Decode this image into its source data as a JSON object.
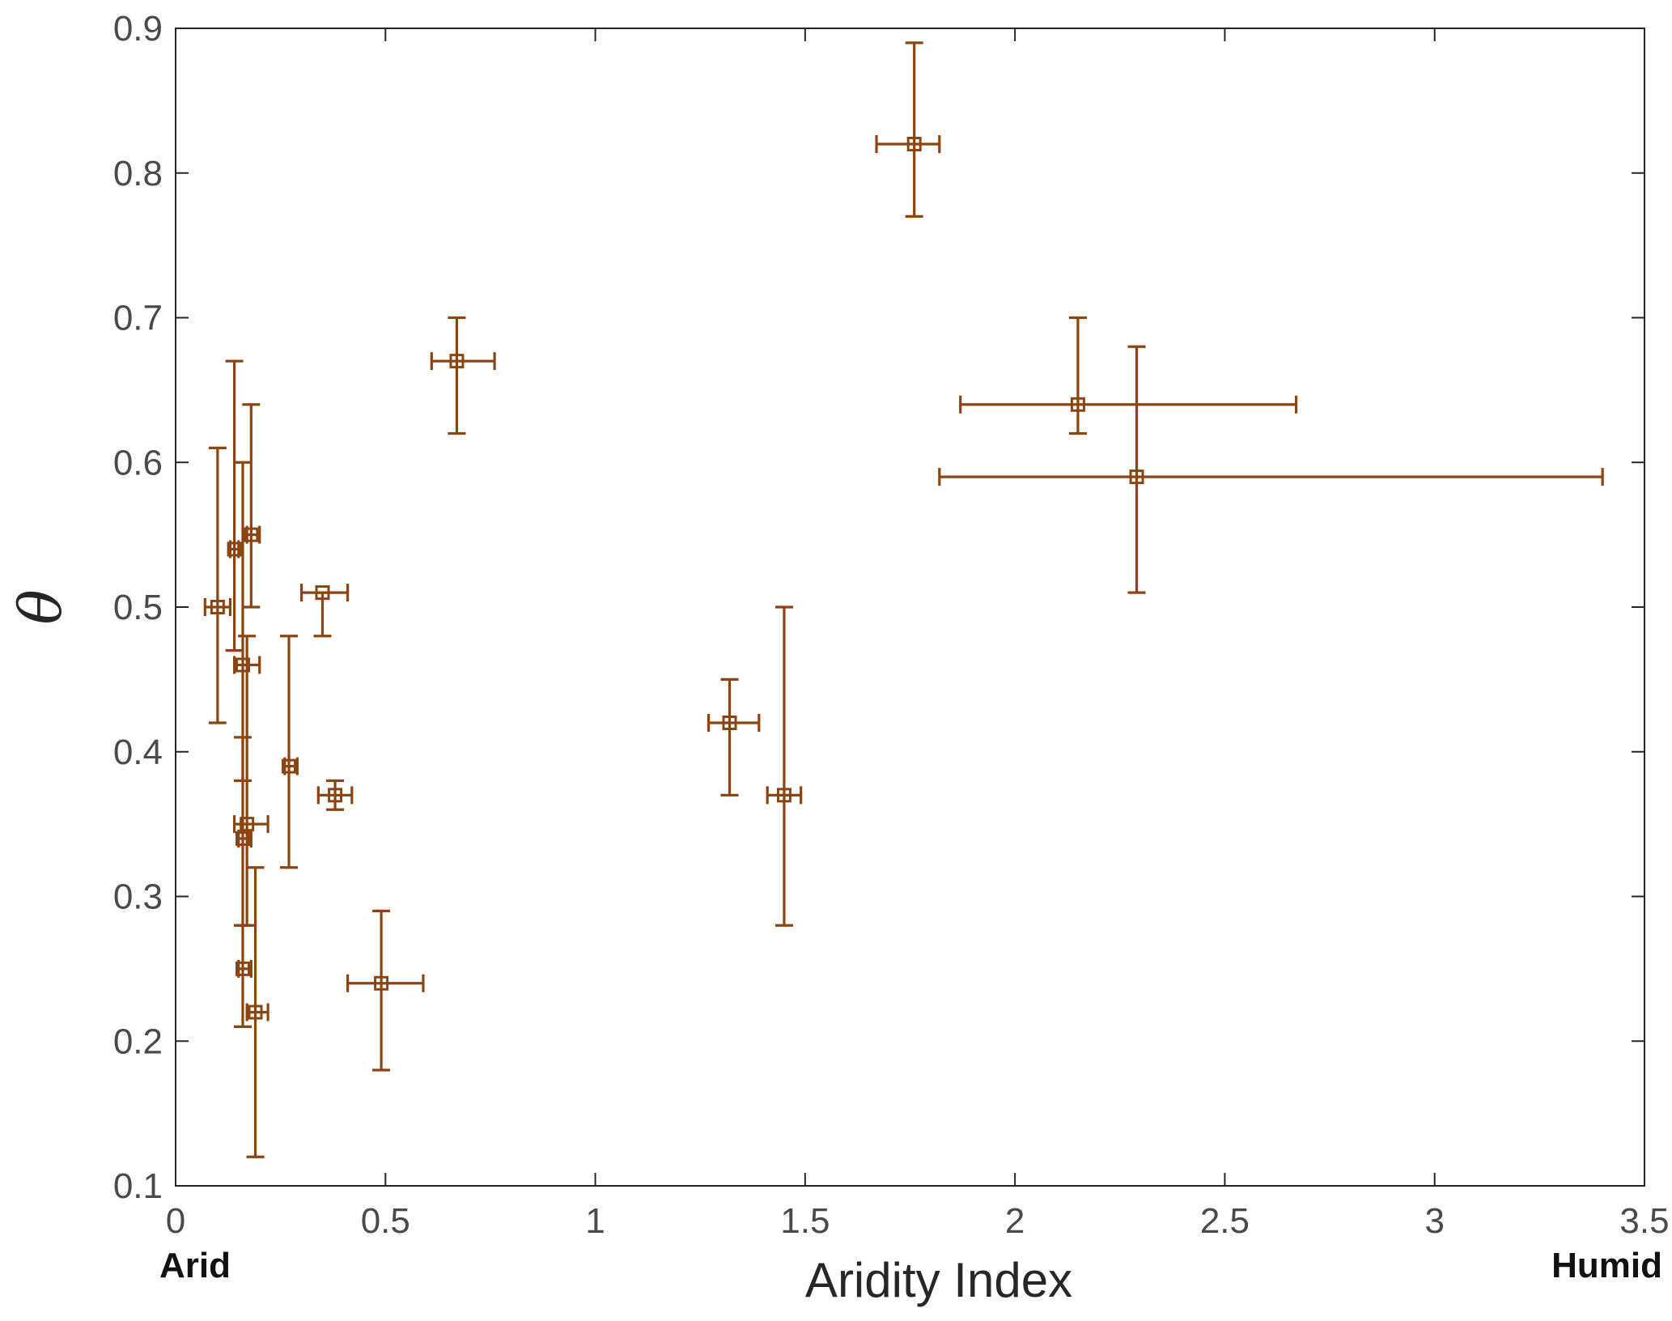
{
  "chart_data": {
    "type": "scatter",
    "title": "",
    "xlabel": "Aridity Index",
    "ylabel": "θ",
    "xlim": [
      0,
      3.5
    ],
    "ylim": [
      0.1,
      0.9
    ],
    "x_ticks": [
      "0",
      "0.5",
      "1",
      "1.5",
      "2",
      "2.5",
      "3",
      "3.5"
    ],
    "y_ticks": [
      "0.1",
      "0.2",
      "0.3",
      "0.4",
      "0.5",
      "0.6",
      "0.7",
      "0.8",
      "0.9"
    ],
    "x_end_labels": {
      "left": "Arid",
      "right": "Humid"
    },
    "grid": false,
    "marker": "square",
    "color": "#8B4513",
    "points": [
      {
        "x": 0.1,
        "y": 0.5,
        "xlo": 0.07,
        "xhi": 0.13,
        "ylo": 0.42,
        "yhi": 0.61
      },
      {
        "x": 0.14,
        "y": 0.54,
        "xlo": 0.13,
        "xhi": 0.15,
        "ylo": 0.47,
        "yhi": 0.67
      },
      {
        "x": 0.16,
        "y": 0.46,
        "xlo": 0.14,
        "xhi": 0.2,
        "ylo": 0.38,
        "yhi": 0.6
      },
      {
        "x": 0.18,
        "y": 0.55,
        "xlo": 0.17,
        "xhi": 0.2,
        "ylo": 0.5,
        "yhi": 0.64
      },
      {
        "x": 0.16,
        "y": 0.34,
        "xlo": 0.15,
        "xhi": 0.18,
        "ylo": 0.28,
        "yhi": 0.41
      },
      {
        "x": 0.17,
        "y": 0.35,
        "xlo": 0.14,
        "xhi": 0.22,
        "ylo": 0.28,
        "yhi": 0.48
      },
      {
        "x": 0.16,
        "y": 0.25,
        "xlo": 0.15,
        "xhi": 0.18,
        "ylo": 0.21,
        "yhi": 0.28
      },
      {
        "x": 0.19,
        "y": 0.22,
        "xlo": 0.17,
        "xhi": 0.22,
        "ylo": 0.12,
        "yhi": 0.32
      },
      {
        "x": 0.27,
        "y": 0.39,
        "xlo": 0.26,
        "xhi": 0.29,
        "ylo": 0.32,
        "yhi": 0.48
      },
      {
        "x": 0.35,
        "y": 0.51,
        "xlo": 0.3,
        "xhi": 0.41,
        "ylo": 0.48,
        "yhi": 0.51
      },
      {
        "x": 0.38,
        "y": 0.37,
        "xlo": 0.34,
        "xhi": 0.42,
        "ylo": 0.36,
        "yhi": 0.38
      },
      {
        "x": 0.49,
        "y": 0.24,
        "xlo": 0.41,
        "xhi": 0.59,
        "ylo": 0.18,
        "yhi": 0.29
      },
      {
        "x": 0.67,
        "y": 0.67,
        "xlo": 0.61,
        "xhi": 0.76,
        "ylo": 0.62,
        "yhi": 0.7
      },
      {
        "x": 1.32,
        "y": 0.42,
        "xlo": 1.27,
        "xhi": 1.39,
        "ylo": 0.37,
        "yhi": 0.45
      },
      {
        "x": 1.45,
        "y": 0.37,
        "xlo": 1.41,
        "xhi": 1.49,
        "ylo": 0.28,
        "yhi": 0.5
      },
      {
        "x": 1.76,
        "y": 0.82,
        "xlo": 1.67,
        "xhi": 1.82,
        "ylo": 0.77,
        "yhi": 0.89
      },
      {
        "x": 2.15,
        "y": 0.64,
        "xlo": 1.87,
        "xhi": 2.67,
        "ylo": 0.62,
        "yhi": 0.7
      },
      {
        "x": 2.29,
        "y": 0.59,
        "xlo": 1.82,
        "xhi": 3.4,
        "ylo": 0.51,
        "yhi": 0.68
      }
    ]
  }
}
